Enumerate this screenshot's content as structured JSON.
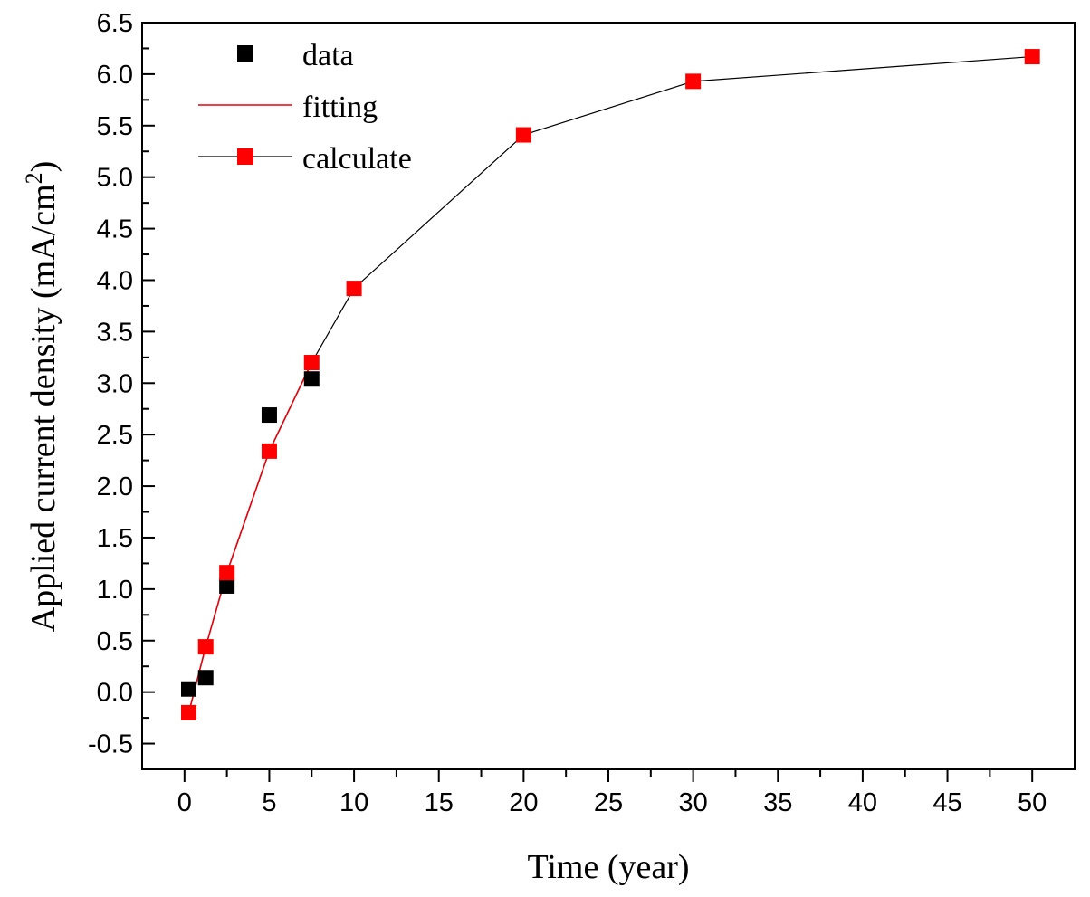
{
  "chart_data": {
    "type": "scatter",
    "xlabel": "Time (year)",
    "ylabel_main": "Applied current density (mA/cm",
    "ylabel_sup": "2",
    "ylabel_close": ")",
    "xlim": [
      -2.5,
      52.5
    ],
    "ylim": [
      -0.75,
      6.5
    ],
    "x_ticks": [
      0,
      5,
      10,
      15,
      20,
      25,
      30,
      35,
      40,
      45,
      50
    ],
    "x_tick_labels": [
      "0",
      "5",
      "10",
      "15",
      "20",
      "25",
      "30",
      "35",
      "40",
      "45",
      "50"
    ],
    "y_ticks": [
      -0.5,
      0.0,
      0.5,
      1.0,
      1.5,
      2.0,
      2.5,
      3.0,
      3.5,
      4.0,
      4.5,
      5.0,
      5.5,
      6.0,
      6.5
    ],
    "y_tick_labels": [
      "-0.5",
      "0.0",
      "0.5",
      "1.0",
      "1.5",
      "2.0",
      "2.5",
      "3.0",
      "3.5",
      "4.0",
      "4.5",
      "5.0",
      "5.5",
      "6.0",
      "6.5"
    ],
    "legend_position": "top-left",
    "series": [
      {
        "name": "data",
        "style": "markers",
        "color": "#000000",
        "x": [
          0.25,
          1.25,
          2.5,
          5,
          7.5
        ],
        "y": [
          0.03,
          0.14,
          1.03,
          2.69,
          3.04
        ]
      },
      {
        "name": "fitting",
        "style": "line",
        "color": "#e8000b",
        "x": [
          0.25,
          1.25,
          2.5,
          5,
          7.5
        ],
        "y": [
          -0.2,
          0.44,
          1.16,
          2.34,
          3.2
        ]
      },
      {
        "name": "calculate",
        "style": "line+markers",
        "color": "#ff0000",
        "line_color": "#000000",
        "x": [
          0.25,
          1.25,
          2.5,
          5,
          7.5,
          10,
          20,
          30,
          50
        ],
        "y": [
          -0.2,
          0.44,
          1.16,
          2.34,
          3.2,
          3.92,
          5.41,
          5.93,
          6.17
        ]
      }
    ]
  }
}
